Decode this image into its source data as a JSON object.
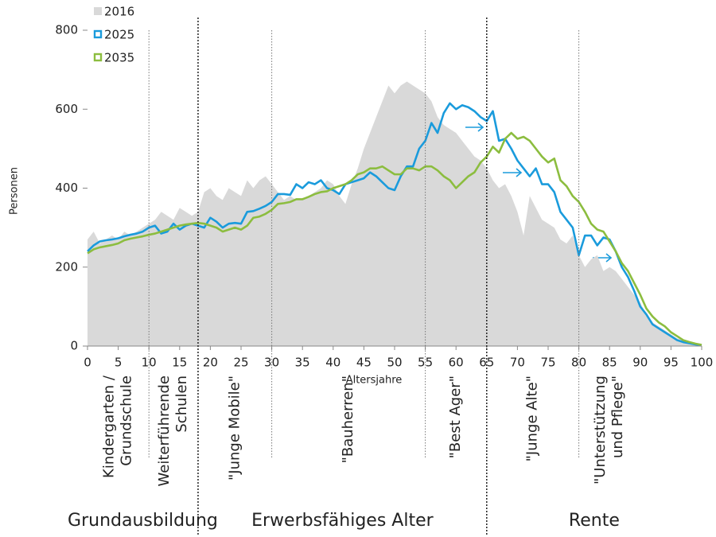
{
  "chart_data": {
    "type": "area_line",
    "x_label": "Altersjahre",
    "y_label": "Personen",
    "x": [
      0,
      1,
      2,
      3,
      4,
      5,
      6,
      7,
      8,
      9,
      10,
      11,
      12,
      13,
      14,
      15,
      16,
      17,
      18,
      19,
      20,
      21,
      22,
      23,
      24,
      25,
      26,
      27,
      28,
      29,
      30,
      31,
      32,
      33,
      34,
      35,
      36,
      37,
      38,
      39,
      40,
      41,
      42,
      43,
      44,
      45,
      46,
      47,
      48,
      49,
      50,
      51,
      52,
      53,
      54,
      55,
      56,
      57,
      58,
      59,
      60,
      61,
      62,
      63,
      64,
      65,
      66,
      67,
      68,
      69,
      70,
      71,
      72,
      73,
      74,
      75,
      76,
      77,
      78,
      79,
      80,
      81,
      82,
      83,
      84,
      85,
      86,
      87,
      88,
      89,
      90,
      91,
      92,
      93,
      94,
      95,
      96,
      97,
      98,
      99,
      100
    ],
    "series": [
      {
        "name": "2016",
        "kind": "area",
        "color": "#d9d9d9",
        "values": [
          270,
          290,
          260,
          270,
          280,
          270,
          290,
          280,
          290,
          300,
          310,
          320,
          340,
          330,
          320,
          350,
          340,
          330,
          340,
          390,
          400,
          380,
          370,
          400,
          390,
          380,
          420,
          400,
          420,
          430,
          410,
          390,
          370,
          380,
          370,
          370,
          380,
          390,
          400,
          420,
          410,
          380,
          360,
          410,
          450,
          500,
          540,
          580,
          620,
          660,
          640,
          660,
          670,
          660,
          650,
          640,
          620,
          580,
          560,
          550,
          540,
          520,
          500,
          480,
          470,
          450,
          420,
          400,
          410,
          380,
          340,
          280,
          380,
          350,
          320,
          310,
          300,
          270,
          260,
          280,
          230,
          200,
          220,
          230,
          190,
          200,
          190,
          170,
          150,
          130,
          110,
          80,
          60,
          50,
          40,
          30,
          20,
          15,
          10,
          5,
          3
        ]
      },
      {
        "name": "2025",
        "kind": "line",
        "color": "#1a9bdc",
        "values": [
          240,
          255,
          265,
          268,
          270,
          273,
          278,
          282,
          285,
          290,
          300,
          305,
          285,
          290,
          310,
          295,
          305,
          310,
          305,
          300,
          325,
          315,
          300,
          310,
          312,
          310,
          340,
          342,
          348,
          355,
          365,
          385,
          385,
          383,
          410,
          400,
          415,
          410,
          420,
          400,
          395,
          385,
          410,
          415,
          420,
          425,
          440,
          430,
          415,
          400,
          395,
          430,
          455,
          455,
          500,
          520,
          565,
          540,
          590,
          615,
          600,
          610,
          605,
          595,
          580,
          570,
          595,
          520,
          525,
          500,
          470,
          450,
          430,
          450,
          410,
          410,
          390,
          340,
          320,
          300,
          230,
          280,
          280,
          255,
          275,
          270,
          240,
          200,
          175,
          140,
          100,
          80,
          55,
          45,
          35,
          25,
          15,
          10,
          7,
          4,
          2
        ]
      },
      {
        "name": "2035",
        "kind": "line",
        "color": "#8cbd3f",
        "values": [
          235,
          245,
          250,
          253,
          256,
          260,
          268,
          272,
          275,
          278,
          282,
          285,
          290,
          295,
          300,
          305,
          308,
          310,
          312,
          310,
          305,
          300,
          290,
          295,
          300,
          295,
          305,
          325,
          328,
          335,
          345,
          360,
          362,
          365,
          372,
          372,
          378,
          385,
          390,
          392,
          400,
          405,
          410,
          420,
          435,
          440,
          450,
          450,
          455,
          445,
          435,
          435,
          450,
          450,
          445,
          455,
          455,
          445,
          430,
          420,
          400,
          415,
          430,
          440,
          465,
          480,
          505,
          490,
          525,
          540,
          525,
          530,
          520,
          500,
          480,
          465,
          475,
          420,
          405,
          380,
          365,
          340,
          310,
          295,
          290,
          265,
          240,
          210,
          190,
          160,
          130,
          95,
          75,
          60,
          50,
          35,
          25,
          15,
          10,
          6,
          3
        ]
      }
    ],
    "xlim": [
      0,
      100
    ],
    "xticks": [
      0,
      5,
      10,
      15,
      20,
      25,
      30,
      35,
      40,
      45,
      50,
      55,
      60,
      65,
      70,
      75,
      80,
      85,
      90,
      95,
      100
    ],
    "ylim": [
      0,
      800
    ],
    "yticks": [
      0,
      200,
      400,
      600,
      800
    ],
    "dividers": [
      {
        "x": 10,
        "style": "thin"
      },
      {
        "x": 18,
        "style": "thick"
      },
      {
        "x": 30,
        "style": "thin"
      },
      {
        "x": 55,
        "style": "thin"
      },
      {
        "x": 65,
        "style": "thick"
      },
      {
        "x": 80,
        "style": "thin"
      }
    ],
    "phases": [
      {
        "lines": [
          "Kindergarten /",
          "Grundschule"
        ],
        "from": 0,
        "to": 10
      },
      {
        "lines": [
          "Weiterführende",
          "Schulen"
        ],
        "from": 10,
        "to": 18
      },
      {
        "lines": [
          "\"Junge Mobile\""
        ],
        "from": 18,
        "to": 30
      },
      {
        "lines": [
          "\"Bauherren\""
        ],
        "from": 30,
        "to": 55
      },
      {
        "lines": [
          "\"Best Ager\""
        ],
        "from": 55,
        "to": 65
      },
      {
        "lines": [
          "\"Junge Alte\""
        ],
        "from": 65,
        "to": 80
      },
      {
        "lines": [
          "\"Unterstützung",
          "und Pflege\""
        ],
        "from": 80,
        "to": 90
      }
    ],
    "groups": [
      {
        "label": "Grundausbildung",
        "from": 0,
        "to": 18
      },
      {
        "label": "Erwerbsfähiges Alter",
        "from": 18,
        "to": 65
      },
      {
        "label": "Rente",
        "from": 65,
        "to": 100
      }
    ]
  }
}
